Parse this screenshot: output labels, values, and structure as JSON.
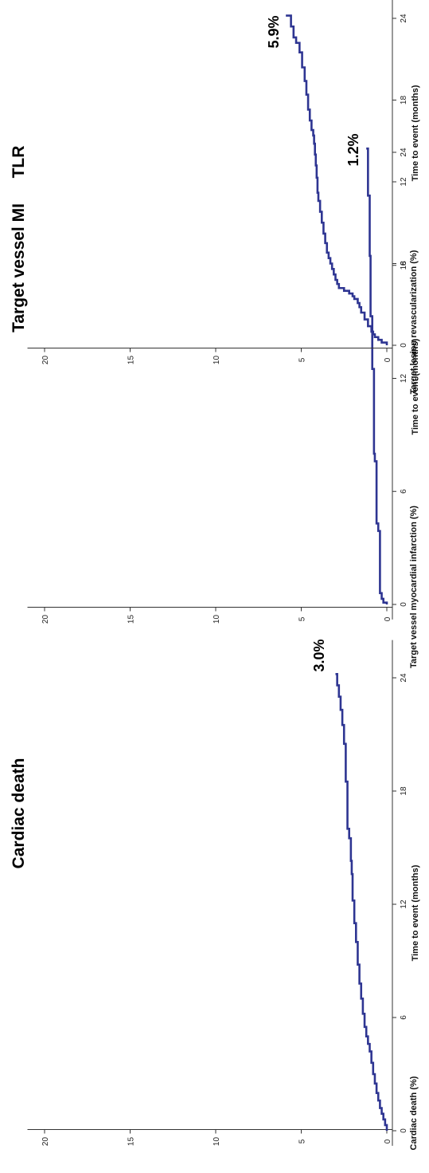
{
  "chart_data": [
    {
      "type": "line",
      "title": "Cardiac death",
      "xlabel": "Time to event (months)",
      "ylabel": "Cardiac death (%)",
      "xticks": [
        "0",
        "6",
        "12",
        "18",
        "24"
      ],
      "yticks": [
        "0",
        "5",
        "10",
        "15",
        "20"
      ],
      "xlim": [
        0,
        26
      ],
      "ylim": [
        0,
        21
      ],
      "end_label": "3.0%",
      "color": "#2e3592",
      "series": [
        {
          "x": [
            0,
            0.3,
            0.6,
            0.9,
            1.2,
            1.6,
            2.0,
            2.5,
            3.0,
            3.6,
            4.2,
            4.6,
            5.0,
            5.5,
            6.2,
            7.0,
            7.8,
            8.8,
            10.0,
            11.0,
            12.2,
            13.6,
            14.3,
            15.5,
            16.0,
            18.5,
            20.5,
            21.5,
            22.3,
            23.0,
            23.6,
            24.2
          ],
          "y": [
            0,
            0.1,
            0.2,
            0.3,
            0.4,
            0.5,
            0.6,
            0.7,
            0.8,
            0.9,
            1.0,
            1.1,
            1.2,
            1.3,
            1.4,
            1.5,
            1.6,
            1.7,
            1.8,
            1.9,
            2.0,
            2.05,
            2.1,
            2.2,
            2.3,
            2.4,
            2.5,
            2.6,
            2.7,
            2.8,
            2.9,
            3.0
          ]
        }
      ]
    },
    {
      "type": "line",
      "title": "Target vessel MI",
      "xlabel": "Time to event (months)",
      "ylabel": "Target vessel myocardial infarction (%)",
      "xticks": [
        "0",
        "6",
        "12",
        "18",
        "24"
      ],
      "yticks": [
        "0",
        "5",
        "10",
        "15",
        "20"
      ],
      "xlim": [
        0,
        26
      ],
      "ylim": [
        0,
        21
      ],
      "end_label": "1.2%",
      "color": "#2e3592",
      "series": [
        {
          "x": [
            0,
            0.1,
            0.3,
            0.6,
            3.9,
            4.3,
            7.6,
            8.0,
            12.5,
            15.3,
            18.5,
            21.7,
            24.2
          ],
          "y": [
            0,
            0.2,
            0.3,
            0.4,
            0.5,
            0.6,
            0.7,
            0.75,
            0.85,
            0.95,
            1.0,
            1.1,
            1.2
          ]
        }
      ]
    },
    {
      "type": "line",
      "title": "TLR",
      "xlabel": "Time to event (months)",
      "ylabel": "Target lesion revascularization (%)",
      "xticks": [
        "0",
        "6",
        "12",
        "18",
        "24"
      ],
      "yticks": [
        "0",
        "5",
        "10",
        "15",
        "20"
      ],
      "xlim": [
        0,
        26
      ],
      "ylim": [
        0,
        21
      ],
      "end_label": "5.9%",
      "color": "#2e3592",
      "series": [
        {
          "x": [
            0,
            0.2,
            0.4,
            0.6,
            0.8,
            1.0,
            1.4,
            1.9,
            2.4,
            2.8,
            3.1,
            3.4,
            3.6,
            3.8,
            4.0,
            4.2,
            4.5,
            4.8,
            5.2,
            5.6,
            6.0,
            6.4,
            6.8,
            7.5,
            8.2,
            9.0,
            9.8,
            10.6,
            11.2,
            12.3,
            13.2,
            14.0,
            14.8,
            15.4,
            15.8,
            16.5,
            17.3,
            18.4,
            19.4,
            20.4,
            21.5,
            22.2,
            22.6,
            23.4,
            24.2
          ],
          "y": [
            0,
            0.3,
            0.5,
            0.7,
            0.8,
            0.9,
            1.1,
            1.3,
            1.5,
            1.6,
            1.7,
            1.9,
            2.0,
            2.2,
            2.5,
            2.8,
            2.9,
            3.0,
            3.1,
            3.2,
            3.3,
            3.4,
            3.5,
            3.6,
            3.7,
            3.8,
            3.9,
            4.0,
            4.05,
            4.1,
            4.15,
            4.2,
            4.25,
            4.3,
            4.4,
            4.5,
            4.6,
            4.7,
            4.8,
            4.95,
            5.1,
            5.3,
            5.45,
            5.6,
            5.9
          ]
        }
      ]
    }
  ]
}
